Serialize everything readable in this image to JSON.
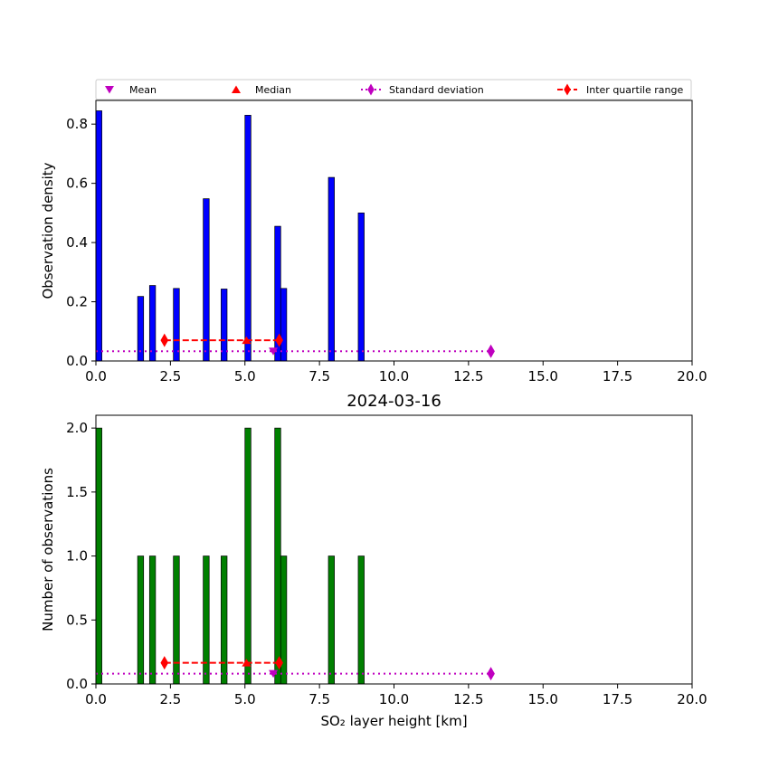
{
  "legend": {
    "items": [
      {
        "label": "Mean",
        "marker": "triangle-down",
        "color": "#bf00bf"
      },
      {
        "label": "Median",
        "marker": "triangle-up",
        "color": "#ff0000"
      },
      {
        "label": "Standard deviation",
        "marker": "diamond",
        "color": "#bf00bf",
        "line": "dotted"
      },
      {
        "label": "Inter quartile range",
        "marker": "diamond",
        "color": "#ff0000",
        "line": "dashed"
      }
    ]
  },
  "chart_data": [
    {
      "type": "bar",
      "title": "",
      "xlabel": "",
      "ylabel": "Observation density",
      "xlim": [
        0,
        20
      ],
      "ylim": [
        0,
        0.88
      ],
      "xticks": [
        "0.0",
        "2.5",
        "5.0",
        "7.5",
        "10.0",
        "12.5",
        "15.0",
        "17.5",
        "20.0"
      ],
      "xtick_values": [
        0,
        2.5,
        5,
        7.5,
        10,
        12.5,
        15,
        17.5,
        20
      ],
      "yticks": [
        "0.0",
        "0.2",
        "0.4",
        "0.6",
        "0.8"
      ],
      "ytick_values": [
        0,
        0.2,
        0.4,
        0.6,
        0.8
      ],
      "bar_color": "#0000ff",
      "bar_width": 0.2,
      "bars": [
        {
          "x": 0.0,
          "value": 0.845
        },
        {
          "x": 1.4,
          "value": 0.218
        },
        {
          "x": 1.8,
          "value": 0.255
        },
        {
          "x": 2.6,
          "value": 0.245
        },
        {
          "x": 3.6,
          "value": 0.548
        },
        {
          "x": 4.2,
          "value": 0.243
        },
        {
          "x": 5.0,
          "value": 0.83
        },
        {
          "x": 6.0,
          "value": 0.455
        },
        {
          "x": 6.2,
          "value": 0.245
        },
        {
          "x": 7.8,
          "value": 0.62
        },
        {
          "x": 8.8,
          "value": 0.5
        }
      ],
      "mean": {
        "x": 5.95,
        "y": 0.033
      },
      "median": {
        "x": 5.05,
        "y": 0.07
      },
      "std_range": {
        "x": [
          0,
          13.25
        ],
        "y": 0.033
      },
      "iqr": {
        "x": [
          2.3,
          6.15
        ],
        "y": 0.07
      }
    },
    {
      "type": "bar",
      "title": "2024-03-16",
      "xlabel": "SO₂ layer height [km]",
      "ylabel": "Number of observations",
      "xlim": [
        0,
        20
      ],
      "ylim": [
        0,
        2.1
      ],
      "xticks": [
        "0.0",
        "2.5",
        "5.0",
        "7.5",
        "10.0",
        "12.5",
        "15.0",
        "17.5",
        "20.0"
      ],
      "xtick_values": [
        0,
        2.5,
        5,
        7.5,
        10,
        12.5,
        15,
        17.5,
        20
      ],
      "yticks": [
        "0.0",
        "0.5",
        "1.0",
        "1.5",
        "2.0"
      ],
      "ytick_values": [
        0,
        0.5,
        1,
        1.5,
        2
      ],
      "bar_color": "#008000",
      "bar_width": 0.2,
      "bars": [
        {
          "x": 0.0,
          "value": 2
        },
        {
          "x": 1.4,
          "value": 1
        },
        {
          "x": 1.8,
          "value": 1
        },
        {
          "x": 2.6,
          "value": 1
        },
        {
          "x": 3.6,
          "value": 1
        },
        {
          "x": 4.2,
          "value": 1
        },
        {
          "x": 5.0,
          "value": 2
        },
        {
          "x": 6.0,
          "value": 2
        },
        {
          "x": 6.2,
          "value": 1
        },
        {
          "x": 7.8,
          "value": 1
        },
        {
          "x": 8.8,
          "value": 1
        }
      ],
      "mean": {
        "x": 5.95,
        "y": 0.08
      },
      "median": {
        "x": 5.05,
        "y": 0.165
      },
      "std_range": {
        "x": [
          0,
          13.25
        ],
        "y": 0.08
      },
      "iqr": {
        "x": [
          2.3,
          6.15
        ],
        "y": 0.165
      }
    }
  ]
}
